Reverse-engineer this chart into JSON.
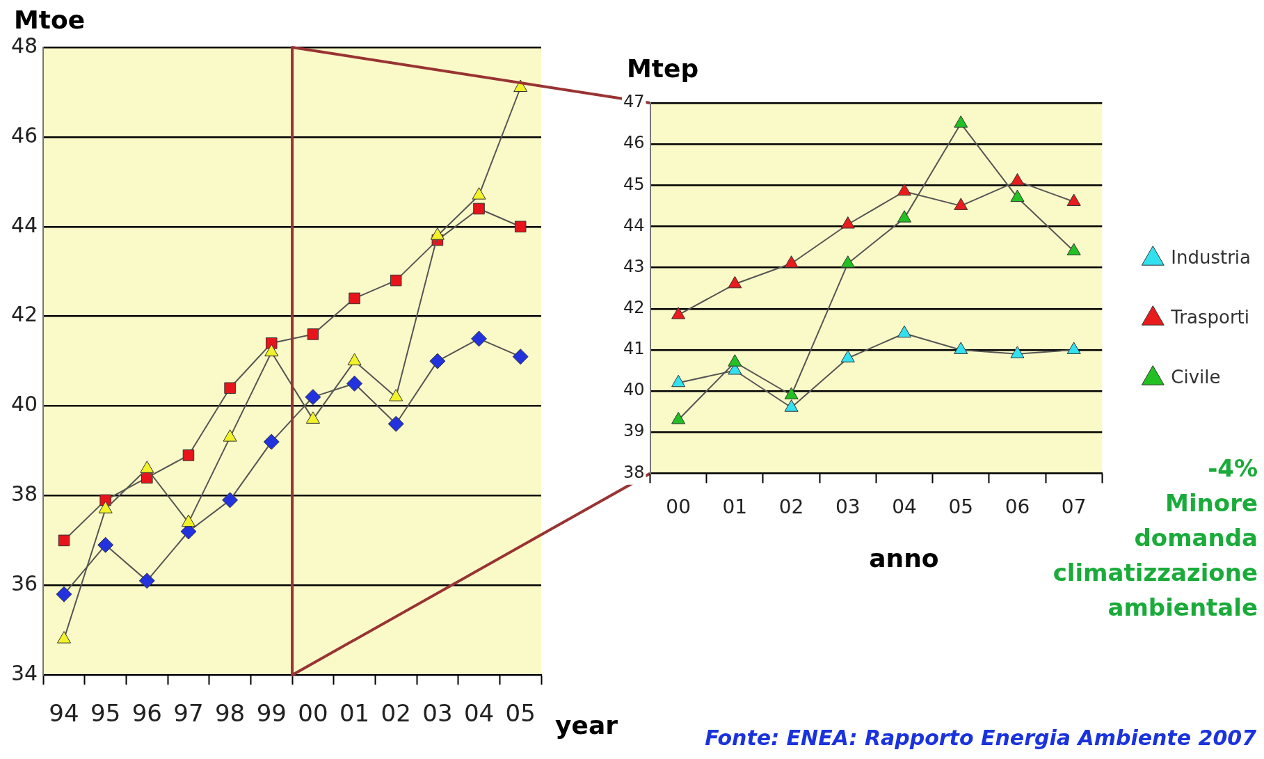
{
  "chart_data": [
    {
      "type": "line",
      "categories": [
        "94",
        "95",
        "96",
        "97",
        "98",
        "99",
        "00",
        "01",
        "02",
        "03",
        "04",
        "05"
      ],
      "ylim": [
        34,
        48
      ],
      "yticks": [
        34,
        36,
        38,
        40,
        42,
        44,
        46,
        48
      ],
      "grid": "y",
      "legend": false,
      "ylabel": "Mtoe",
      "xlabel": "year",
      "series": [
        {
          "color": "#e8141b",
          "marker": "square",
          "values": [
            37.0,
            37.9,
            38.4,
            38.9,
            40.4,
            41.4,
            41.6,
            42.4,
            42.8,
            43.7,
            44.4,
            44.0
          ]
        },
        {
          "color": "#2233dd",
          "marker": "diamond",
          "values": [
            35.8,
            36.9,
            36.1,
            37.2,
            37.9,
            39.2,
            40.2,
            40.5,
            39.6,
            41.0,
            41.5,
            41.1
          ]
        },
        {
          "color": "#f2f22a",
          "marker": "triangle",
          "values": [
            34.8,
            37.7,
            38.6,
            37.4,
            39.3,
            41.2,
            39.7,
            41.0,
            40.2,
            43.8,
            44.7,
            47.1
          ]
        }
      ]
    },
    {
      "type": "line",
      "categories": [
        "00",
        "01",
        "02",
        "03",
        "04",
        "05",
        "06",
        "07"
      ],
      "ylim": [
        38,
        47
      ],
      "yticks": [
        38,
        39,
        40,
        41,
        42,
        43,
        44,
        45,
        46,
        47
      ],
      "grid": "y",
      "legend": "right",
      "marker": "triangle",
      "ylabel": "Mtep",
      "xlabel": "anno",
      "annotations": [
        "-4%\nMinore\ndomanda\nclimatizzazione\nambientale",
        "Fonte: ENEA: Rapporto Energia  Ambiente 2007"
      ],
      "series": [
        {
          "name": "Industria",
          "color": "#33e0ef",
          "values": [
            40.2,
            40.5,
            39.6,
            40.8,
            41.4,
            41.0,
            40.9,
            41.0
          ]
        },
        {
          "name": "Trasporti",
          "color": "#e81c1c",
          "values": [
            41.85,
            42.6,
            43.1,
            44.05,
            44.85,
            44.5,
            45.1,
            44.6
          ]
        },
        {
          "name": "Civile",
          "color": "#22c022",
          "values": [
            39.3,
            40.7,
            39.9,
            43.1,
            44.2,
            46.5,
            44.7,
            43.4
          ]
        }
      ]
    }
  ]
}
